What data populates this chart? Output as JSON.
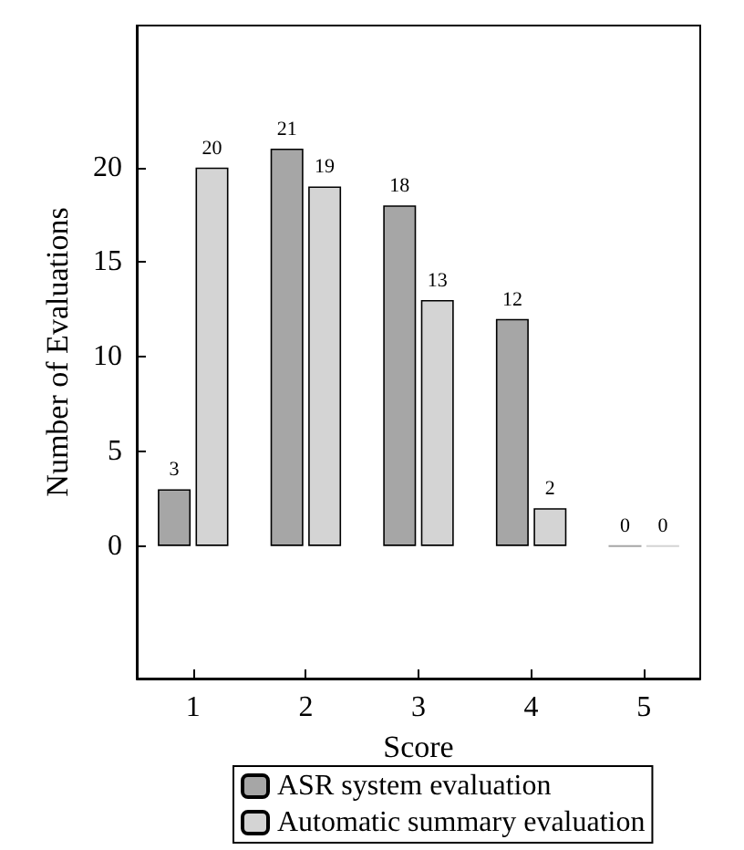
{
  "chart_data": {
    "type": "bar",
    "xlabel": "Score",
    "ylabel": "Number of Evaluations",
    "categories": [
      "1",
      "2",
      "3",
      "4",
      "5"
    ],
    "series": [
      {
        "name": "ASR system evaluation",
        "color": "#a6a6a6",
        "values": [
          3,
          21,
          18,
          12,
          0
        ]
      },
      {
        "name": "Automatic summary evaluation",
        "color": "#d4d4d4",
        "values": [
          20,
          19,
          13,
          2,
          0
        ]
      }
    ],
    "ylim": [
      -7,
      27.5
    ],
    "yticks": [
      0,
      5,
      10,
      15,
      20
    ],
    "data_labels": true,
    "legend": "bottom",
    "grid": false
  }
}
